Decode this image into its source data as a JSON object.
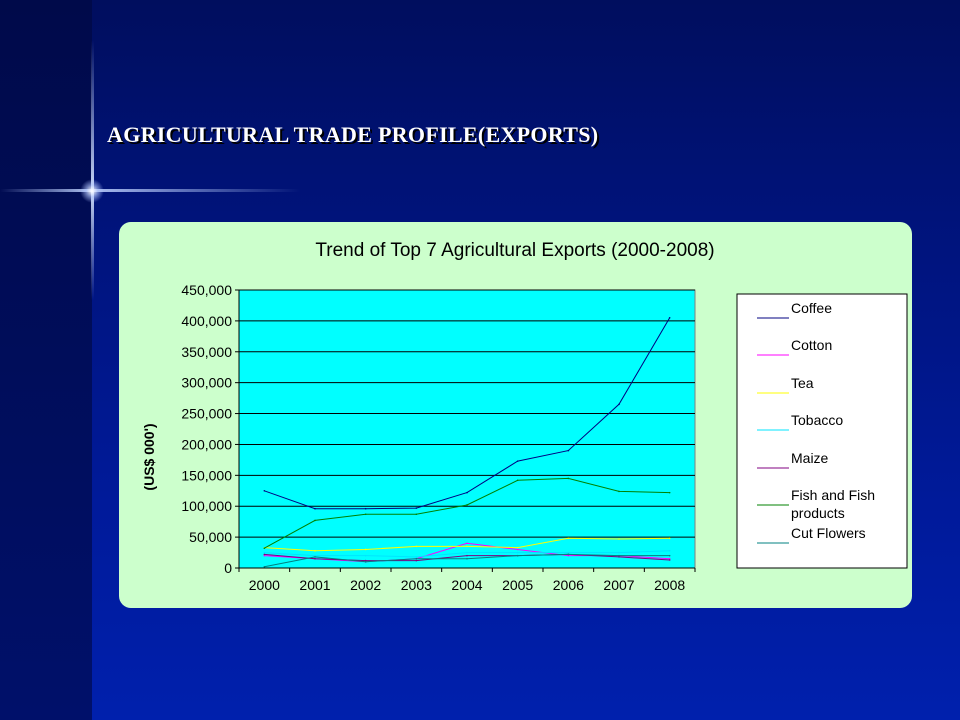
{
  "slide": {
    "title": "AGRICULTURAL TRADE PROFILE(EXPORTS)"
  },
  "chart_data": {
    "type": "line",
    "title": "Trend of Top 7 Agricultural Exports (2000-2008)",
    "xlabel": "",
    "ylabel": "(US$ 000')",
    "ylim": [
      0,
      450000
    ],
    "yticks": [
      "0",
      "50,000",
      "100,000",
      "150,000",
      "200,000",
      "250,000",
      "300,000",
      "350,000",
      "400,000",
      "450,000"
    ],
    "x": [
      "2000",
      "2001",
      "2002",
      "2003",
      "2004",
      "2005",
      "2006",
      "2007",
      "2008"
    ],
    "grid": true,
    "legend_position": "right",
    "plot_background": "#00ffff",
    "panel_background": "#ccffcc",
    "series": [
      {
        "name": "Coffee",
        "color": "#000080",
        "values": [
          125000,
          96000,
          96000,
          97000,
          122000,
          173000,
          190000,
          265000,
          405000
        ]
      },
      {
        "name": "Cotton",
        "color": "#ff00ff",
        "values": [
          20000,
          15000,
          10000,
          15000,
          40000,
          30000,
          20000,
          20000,
          15000
        ]
      },
      {
        "name": "Tea",
        "color": "#ffff00",
        "values": [
          33000,
          28000,
          30000,
          35000,
          35000,
          33000,
          48000,
          47000,
          48000
        ]
      },
      {
        "name": "Tobacco",
        "color": "#00e5ff",
        "values": [
          25000,
          20000,
          20000,
          18000,
          25000,
          25000,
          25000,
          25000,
          28000
        ]
      },
      {
        "name": "Maize",
        "color": "#800080",
        "values": [
          22000,
          15000,
          12000,
          12000,
          20000,
          20000,
          22000,
          18000,
          13000
        ]
      },
      {
        "name": "Fish and Fish products",
        "color": "#008000",
        "values": [
          32000,
          77000,
          87000,
          87000,
          102000,
          142000,
          145000,
          124000,
          122000
        ]
      },
      {
        "name": "Cut Flowers",
        "color": "#008080",
        "values": [
          2000,
          18000,
          10000,
          15000,
          15000,
          20000,
          22000,
          20000,
          20000
        ]
      }
    ]
  }
}
